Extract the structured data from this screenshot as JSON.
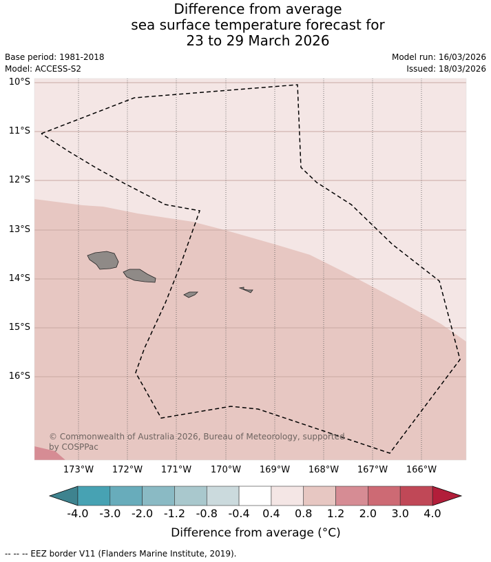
{
  "title": {
    "line1": "Difference from average",
    "line2": "sea surface temperature forecast for",
    "line3": "23 to 29 March 2026"
  },
  "meta": {
    "base_period": "Base period: 1981-2018",
    "model": "Model: ACCESS-S2",
    "model_run": "Model run: 16/03/2026",
    "issued": "Issued: 18/03/2026"
  },
  "lat_labels": [
    "10°S",
    "11°S",
    "12°S",
    "13°S",
    "14°S",
    "15°S",
    "16°S"
  ],
  "lon_labels": [
    "173°W",
    "172°W",
    "171°W",
    "170°W",
    "169°W",
    "168°W",
    "167°W",
    "166°W"
  ],
  "copyright": {
    "line1": "© Commonwealth of Australia 2026, Bureau of Meteorology, supported",
    "line2": "by COSPPac"
  },
  "colorbar": {
    "ticks": [
      "-4.0",
      "-3.0",
      "-2.0",
      "-1.2",
      "-0.8",
      "-0.4",
      "0.4",
      "0.8",
      "1.2",
      "2.0",
      "3.0",
      "4.0"
    ],
    "colors": [
      "#47a2b3",
      "#68acbb",
      "#8abac4",
      "#a9c8cd",
      "#cbdadd",
      "#ffffff",
      "#f4e6e5",
      "#e7c7c2",
      "#d68c94",
      "#cd6a74",
      "#c04857"
    ],
    "under_color": "#3e838f",
    "over_color": "#b21e3a",
    "label": "Difference from average (°C)"
  },
  "legend": {
    "eez": "--  --  -- EEZ border V11 (Flanders Marine Institute, 2019)."
  }
}
